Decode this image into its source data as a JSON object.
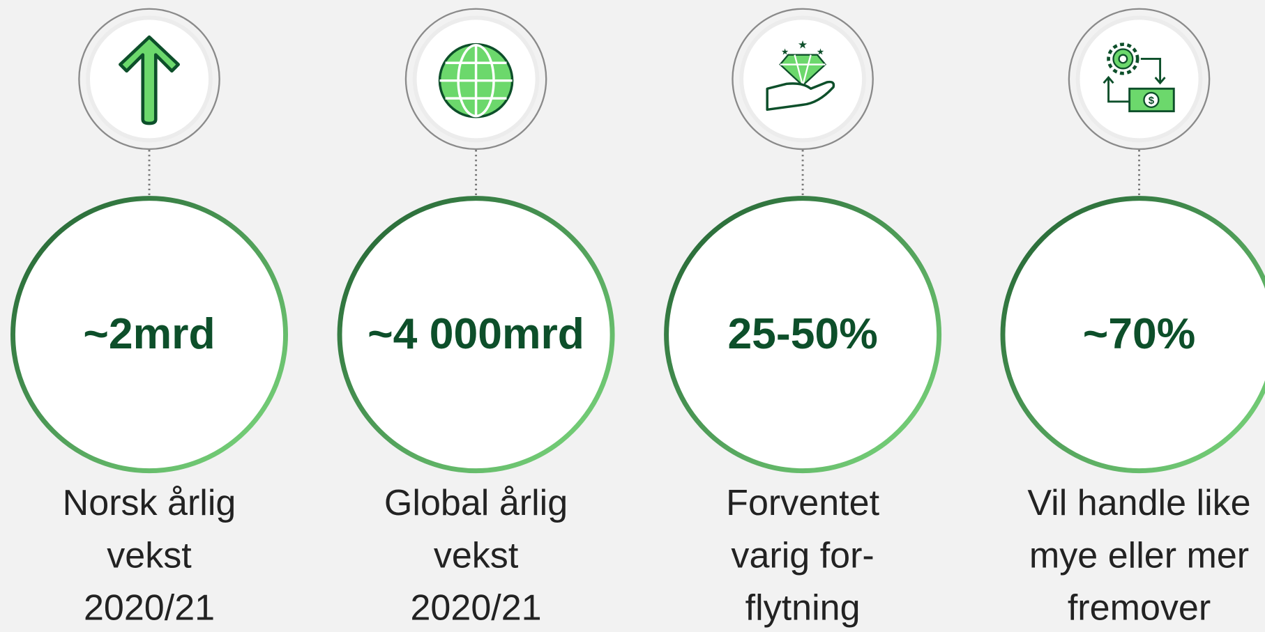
{
  "items": [
    {
      "value": "~2mrd",
      "label": [
        "Norsk årlig",
        "vekst",
        "2020/21"
      ]
    },
    {
      "value": "~4 000mrd",
      "label": [
        "Global årlig",
        "vekst",
        "2020/21"
      ]
    },
    {
      "value": "25-50%",
      "label": [
        "Forventet",
        "varig for-",
        "flytning"
      ]
    },
    {
      "value": "~70%",
      "label": [
        "Vil handle like",
        "mye eller mer",
        "fremover"
      ]
    }
  ]
}
